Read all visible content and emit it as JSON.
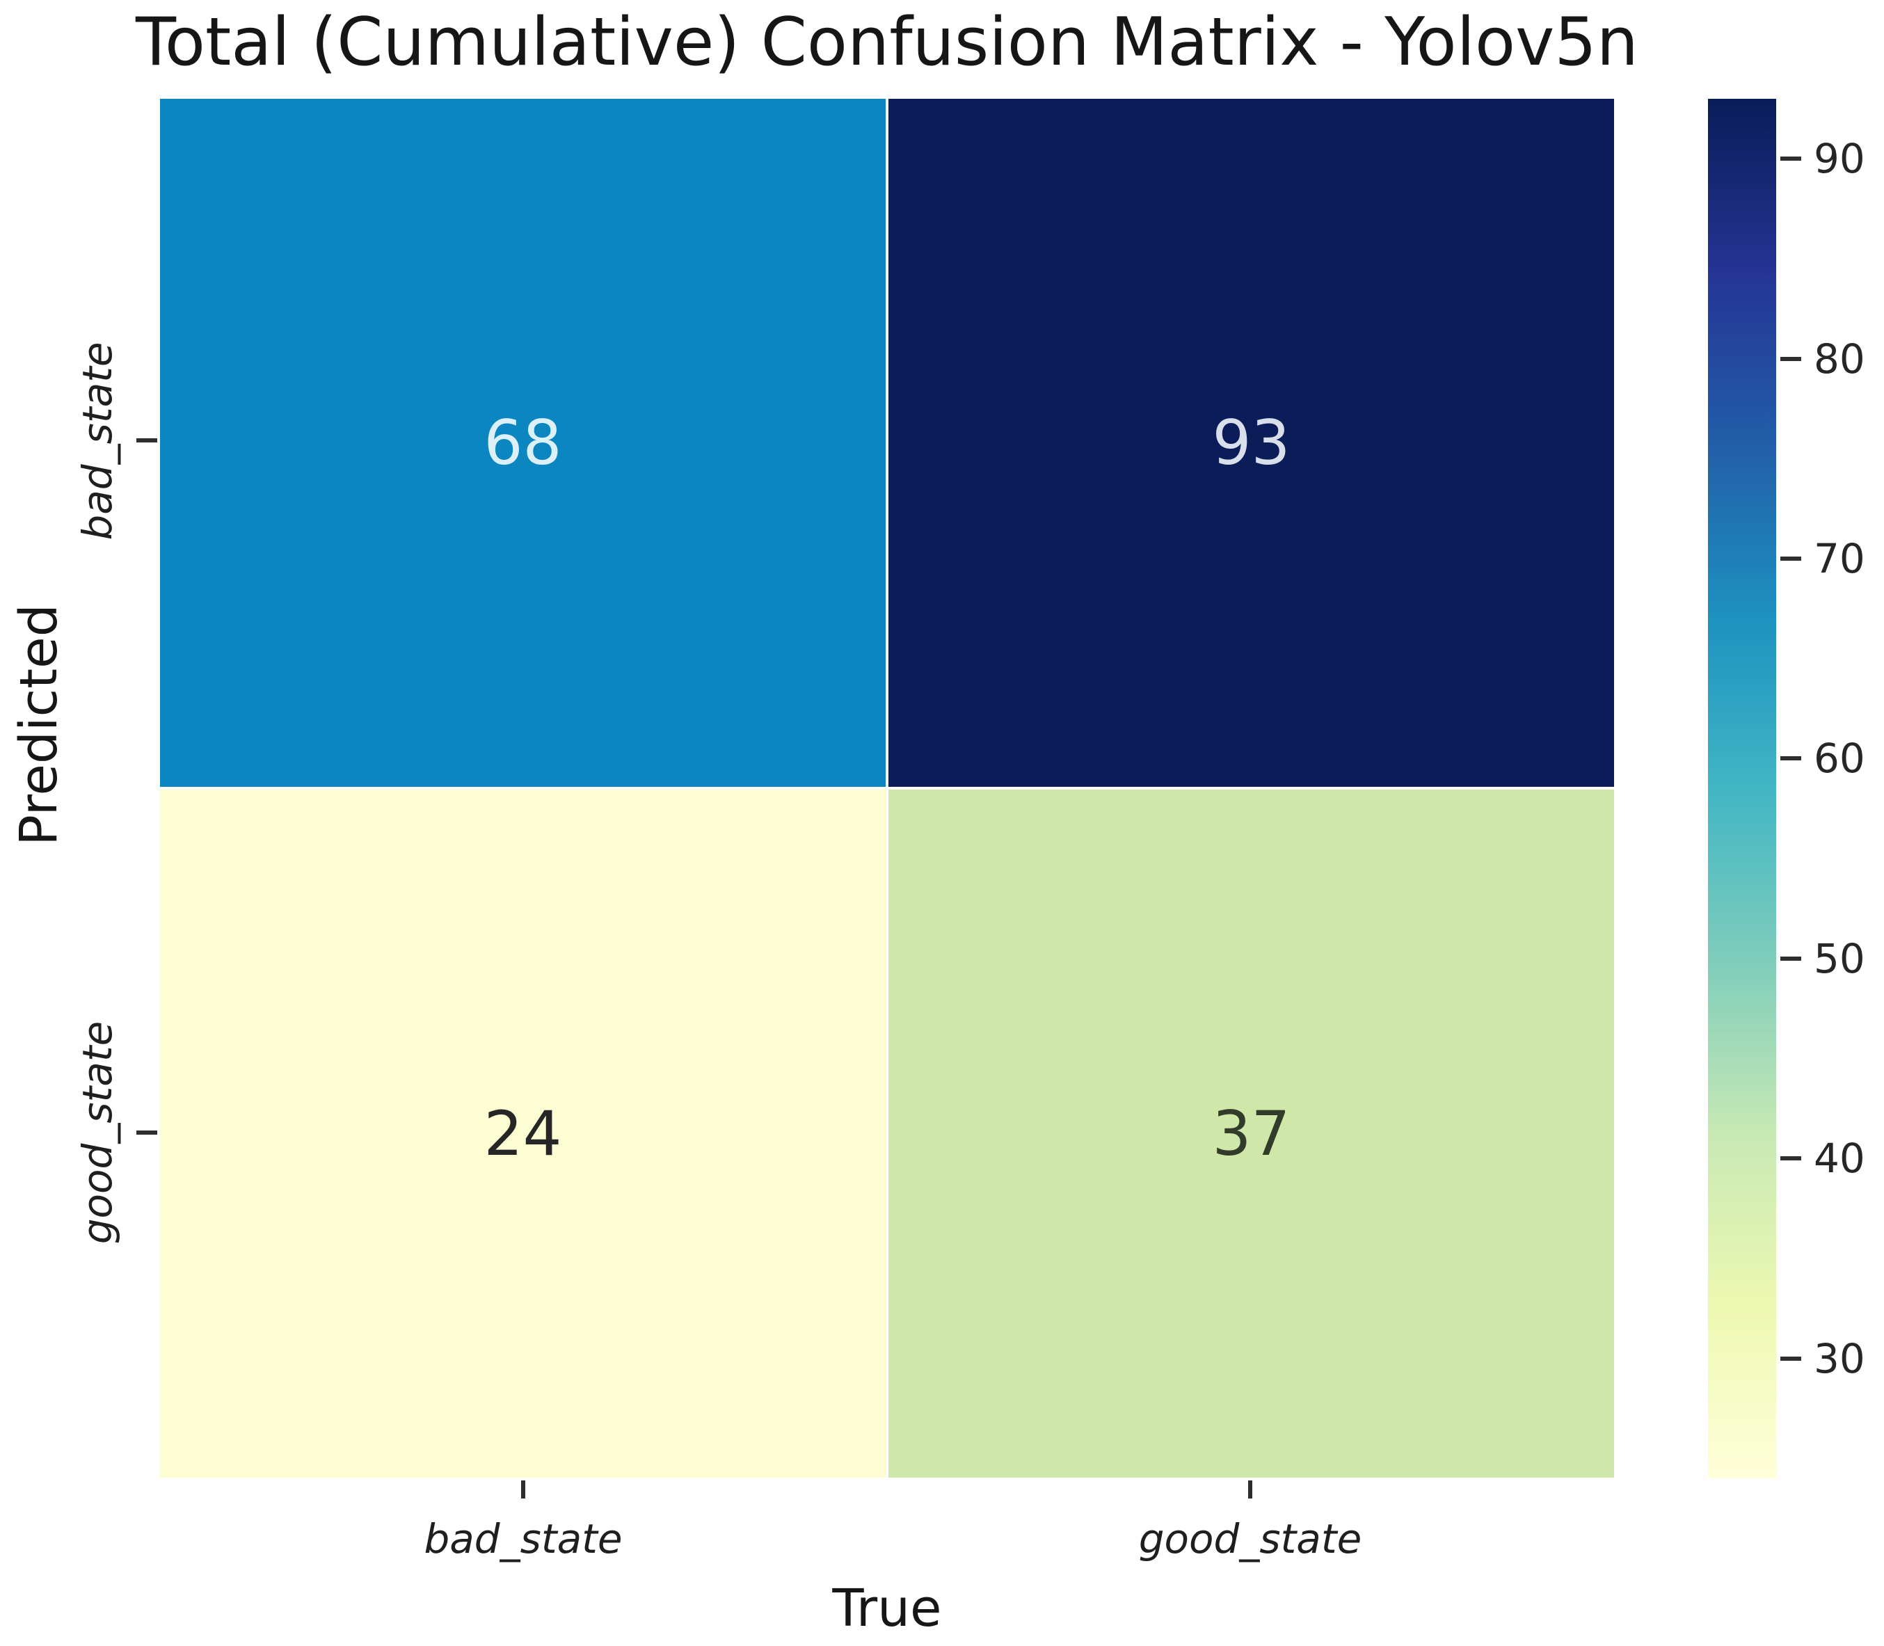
{
  "chart_data": {
    "type": "heatmap",
    "title": "Total (Cumulative) Confusion Matrix - Yolov5n",
    "xlabel": "True",
    "ylabel": "Predicted",
    "x_categories": [
      "bad_state",
      "good_state"
    ],
    "y_categories": [
      "bad_state",
      "good_state"
    ],
    "matrix": [
      [
        68,
        93
      ],
      [
        24,
        37
      ]
    ],
    "cells": [
      {
        "predicted": "bad_state",
        "true": "bad_state",
        "value": "68",
        "color": "#0c86c0",
        "text_color": "#dcf0fa"
      },
      {
        "predicted": "bad_state",
        "true": "good_state",
        "value": "93",
        "color": "#0b1d59",
        "text_color": "#d9deeb"
      },
      {
        "predicted": "good_state",
        "true": "bad_state",
        "value": "24",
        "color": "#fcfdd3",
        "text_color": "#262626"
      },
      {
        "predicted": "good_state",
        "true": "good_state",
        "value": "37",
        "color": "#cfe8a9",
        "text_color": "#333c2b"
      }
    ],
    "colorbar": {
      "vmin": 24,
      "vmax": 93,
      "ticks": [
        90,
        80,
        70,
        60,
        50,
        40,
        30
      ],
      "colormap": "YlGnBu",
      "gradient_stops_bottom_to_top": [
        "#ffffd9",
        "#edf8b1",
        "#c7e9b4",
        "#7fcdbb",
        "#41b6c4",
        "#1d91c0",
        "#225ea8",
        "#253494",
        "#081d58"
      ]
    },
    "grid": false,
    "annotations": true,
    "legend_position": "right-colorbar"
  },
  "ui": {
    "background": "#ffffff",
    "text_color": "#1f1f1f",
    "tick_color": "#2e2e2e"
  }
}
